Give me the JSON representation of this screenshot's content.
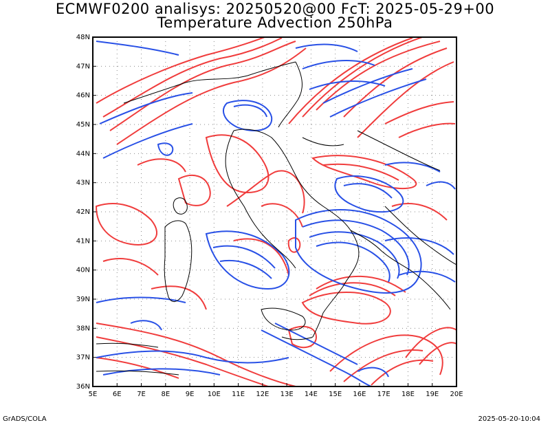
{
  "header": {
    "title_line1": "ECMWF0200 analisys: 20250520@00 FcT: 2025-05-29+00",
    "title_line2": "Temperature Advection 250hPa"
  },
  "axes": {
    "lat_labels": [
      "36N",
      "37N",
      "38N",
      "39N",
      "40N",
      "41N",
      "42N",
      "43N",
      "44N",
      "45N",
      "46N",
      "47N",
      "48N"
    ],
    "lon_labels": [
      "5E",
      "6E",
      "7E",
      "8E",
      "9E",
      "10E",
      "11E",
      "12E",
      "13E",
      "14E",
      "15E",
      "16E",
      "17E",
      "18E",
      "19E",
      "20E"
    ],
    "lat_range": [
      36,
      48
    ],
    "lon_range": [
      5,
      20
    ]
  },
  "colors": {
    "positive": "#f03c3c",
    "negative": "#2850e6",
    "coast": "#000000",
    "grid": "#888888"
  },
  "footer": {
    "left": "GrADS/COLA",
    "right": "2025-05-20-10:04"
  }
}
